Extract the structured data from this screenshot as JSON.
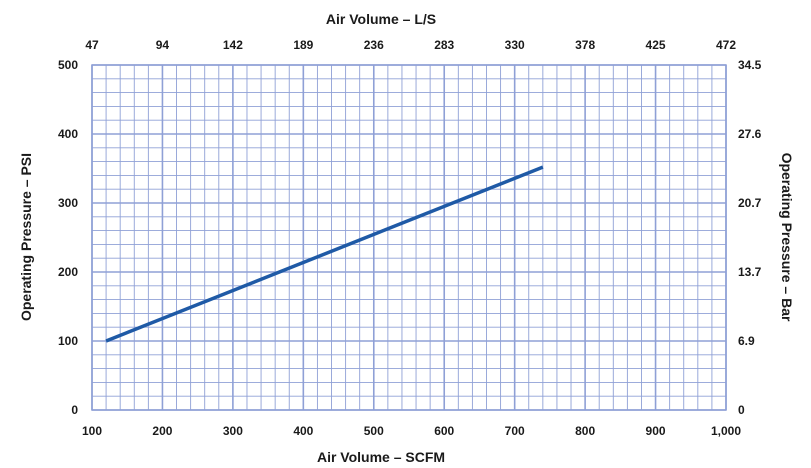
{
  "chart_data": {
    "type": "line",
    "title": "",
    "xlabel": "Air Volume – SCFM",
    "ylabel": "Operating Pressure – PSI",
    "secondary_xlabel": "Air Volume – L/S",
    "secondary_ylabel": "Operating Pressure – Bar",
    "xlim": [
      100,
      1000
    ],
    "ylim": [
      0,
      500
    ],
    "x_ticks": [
      "100",
      "200",
      "300",
      "400",
      "500",
      "600",
      "700",
      "800",
      "900",
      "1,000"
    ],
    "y_ticks": [
      "0",
      "100",
      "200",
      "300",
      "400",
      "500"
    ],
    "secondary_x_ticks": [
      "47",
      "94",
      "142",
      "189",
      "236",
      "283",
      "330",
      "378",
      "425",
      "472"
    ],
    "secondary_y_ticks": [
      "0",
      "6.9",
      "13.7",
      "20.7",
      "27.6",
      "34.5"
    ],
    "grid": true,
    "grid_color": "#8fa0d6",
    "line_color": "#1f5aa6",
    "series": [
      {
        "x": [
          120,
          740
        ],
        "y": [
          100,
          352
        ]
      }
    ]
  }
}
